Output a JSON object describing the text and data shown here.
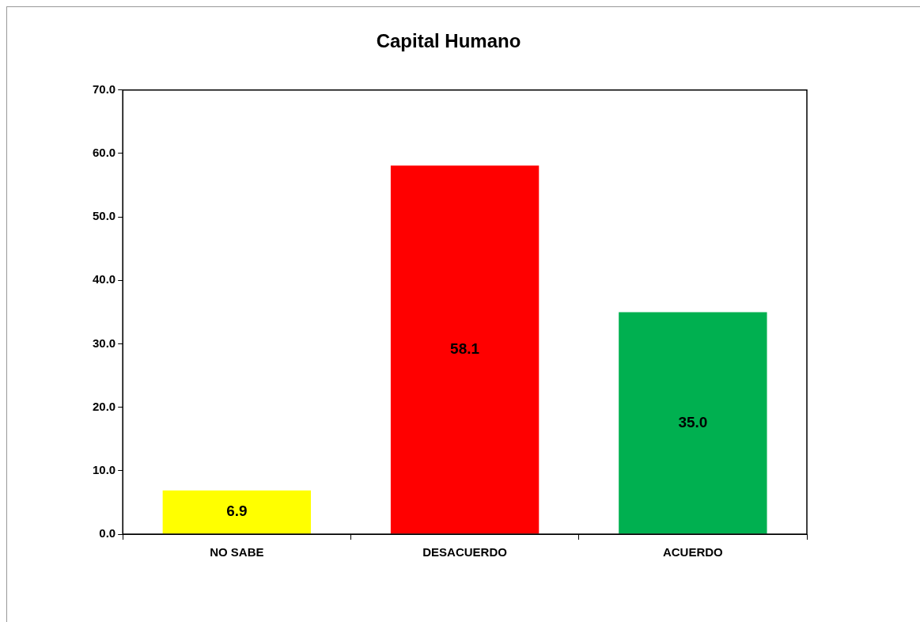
{
  "chart_data": {
    "type": "bar",
    "title": "Capital Humano",
    "categories": [
      "NO SABE",
      "DESACUERDO",
      "ACUERDO"
    ],
    "values": [
      6.9,
      58.1,
      35.0
    ],
    "colors": [
      "#ffff00",
      "#ff0000",
      "#00b050"
    ],
    "value_labels": [
      "6.9",
      "58.1",
      "35.0"
    ],
    "ylim": [
      0,
      70
    ],
    "yticks": [
      {
        "value": 0,
        "label": "0.0"
      },
      {
        "value": 10,
        "label": "10.0"
      },
      {
        "value": 20,
        "label": "20.0"
      },
      {
        "value": 30,
        "label": "30.0"
      },
      {
        "value": 40,
        "label": "40.0"
      },
      {
        "value": 50,
        "label": "50.0"
      },
      {
        "value": 60,
        "label": "60.0"
      },
      {
        "value": 70,
        "label": "70.0"
      }
    ],
    "grid": false,
    "legend": false
  }
}
